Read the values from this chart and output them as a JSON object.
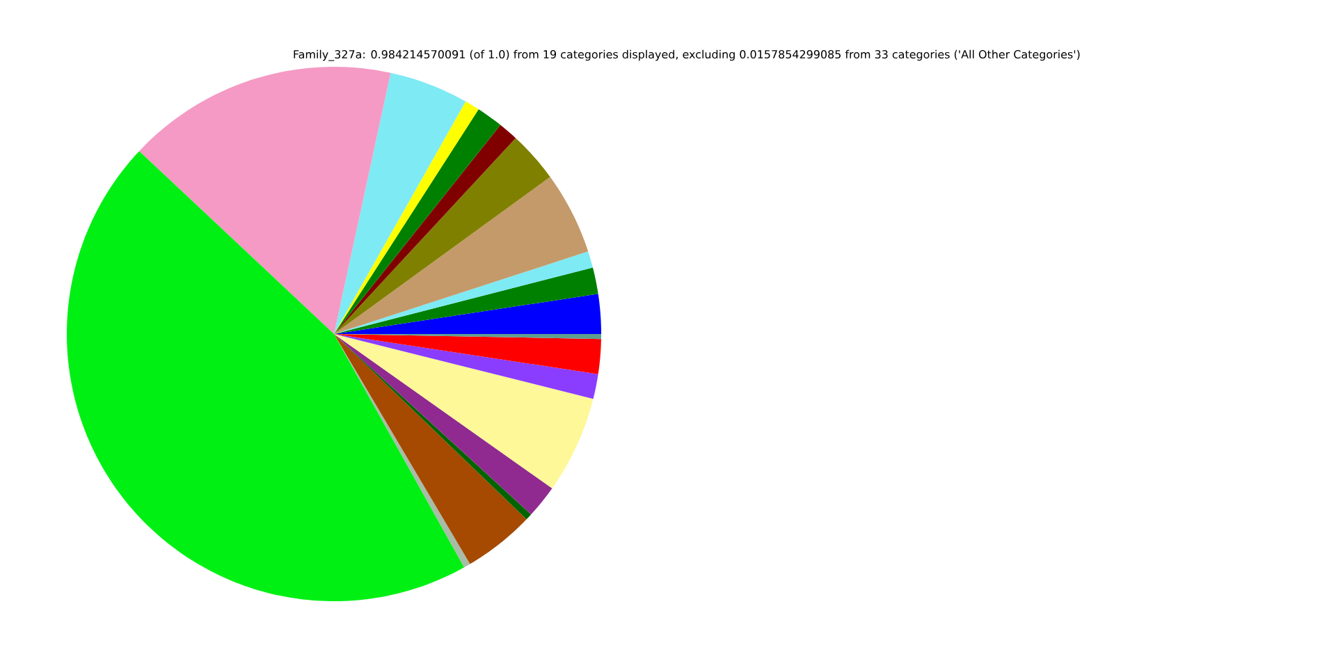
{
  "chart_data": {
    "type": "pie",
    "title": "Family_327a: 0.984214570091 (of 1.0) from 19 categories displayed, excluding 0.0157854299085 from 33 categories ('All Other Categories')",
    "categories": [
      null,
      null,
      null,
      null,
      null,
      null,
      null,
      null,
      null,
      null,
      null,
      null,
      null,
      null,
      null,
      null,
      null,
      null,
      null
    ],
    "values": [
      2.4,
      1.6,
      1.0,
      5.0,
      3.1,
      1.2,
      1.6,
      0.9,
      4.8,
      16.4,
      45.1,
      0.4,
      4.3,
      0.4,
      2.0,
      5.9,
      1.5,
      2.1,
      0.3
    ],
    "colors": [
      "#0000ff",
      "#008000",
      "#7eeaf4",
      "#c49a6a",
      "#808000",
      "#800000",
      "#008000",
      "#ffff00",
      "#7eeaf4",
      "#f49ac4",
      "#00f014",
      "#a8bca8",
      "#a54a00",
      "#006400",
      "#902a90",
      "#fff899",
      "#8b3dff",
      "#ff0000",
      "#5f9f8f"
    ]
  }
}
